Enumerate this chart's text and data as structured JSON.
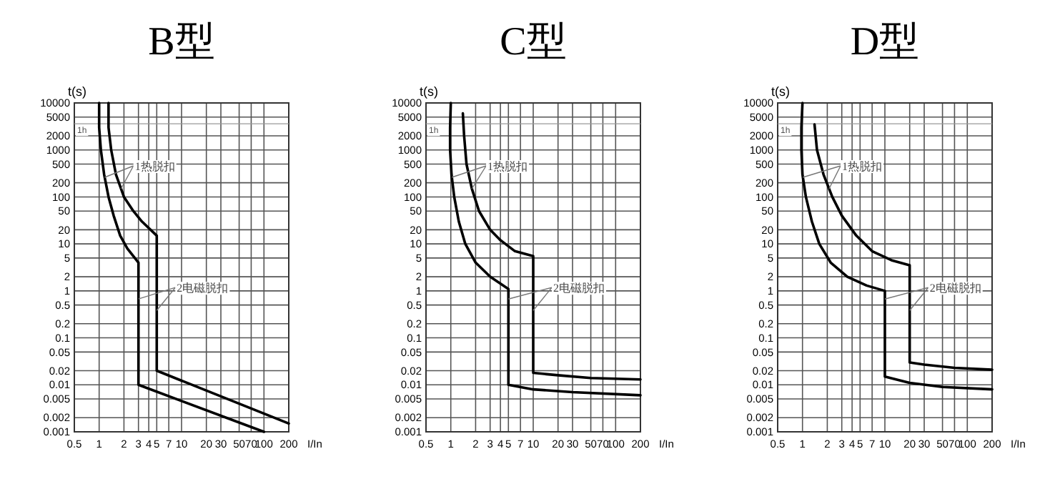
{
  "chart_data": [
    {
      "type": "line",
      "title": "B型",
      "xlabel": "I/In",
      "ylabel": "t(s)",
      "log": "xy",
      "grid": true,
      "xlim": [
        0.5,
        200
      ],
      "xticks": [
        0.5,
        1,
        2,
        3,
        4,
        5,
        7,
        10,
        20,
        30,
        50,
        70,
        100,
        200
      ],
      "ylim": [
        0.001,
        10000
      ],
      "yticks": [
        0.001,
        0.002,
        0.005,
        0.01,
        0.02,
        0.05,
        0.1,
        0.2,
        0.5,
        1,
        2,
        5,
        10,
        20,
        50,
        100,
        200,
        500,
        1000,
        2000,
        5000,
        10000
      ],
      "series": [
        {
          "color": "#000000",
          "x": [
            1,
            1,
            1.05,
            1.15,
            1.3,
            1.5,
            1.8,
            2.2,
            3,
            3,
            100
          ],
          "values": [
            10000,
            3000,
            1000,
            300,
            100,
            40,
            15,
            8,
            4,
            0.01,
            0.001
          ]
        },
        {
          "color": "#000000",
          "x": [
            1.3,
            1.3,
            1.4,
            1.6,
            2,
            2.6,
            3.3,
            5,
            5,
            200
          ],
          "values": [
            10000,
            3000,
            1000,
            300,
            100,
            50,
            30,
            15,
            0.02,
            0.0015
          ]
        }
      ],
      "annotations": [
        "1热脱扣",
        "2电磁脱扣"
      ],
      "ref_lines": [
        {
          "axis": "y",
          "value": 3600,
          "label": "1h"
        }
      ]
    },
    {
      "type": "line",
      "title": "C型",
      "xlabel": "I/In",
      "ylabel": "t(s)",
      "log": "xy",
      "grid": true,
      "xlim": [
        0.5,
        200
      ],
      "xticks": [
        0.5,
        1,
        2,
        3,
        4,
        5,
        7,
        10,
        20,
        30,
        50,
        70,
        100,
        200
      ],
      "ylim": [
        0.001,
        10000
      ],
      "yticks": [
        0.001,
        0.002,
        0.005,
        0.01,
        0.02,
        0.05,
        0.1,
        0.2,
        0.5,
        1,
        2,
        5,
        10,
        20,
        50,
        100,
        200,
        500,
        1000,
        2000,
        5000,
        10000
      ],
      "series": [
        {
          "color": "#000000",
          "x": [
            1,
            0.98,
            0.98,
            1.02,
            1.1,
            1.25,
            1.5,
            2,
            3,
            5,
            5,
            10,
            30,
            200
          ],
          "values": [
            10000,
            3000,
            1000,
            300,
            100,
            30,
            10,
            4,
            2,
            1.1,
            0.01,
            0.008,
            0.007,
            0.006
          ]
        },
        {
          "color": "#000000",
          "x": [
            1.4,
            1.45,
            1.55,
            1.8,
            2.2,
            3,
            4,
            6,
            10,
            10,
            20,
            50,
            200
          ],
          "values": [
            6000,
            2000,
            500,
            150,
            50,
            20,
            12,
            7,
            5.5,
            0.018,
            0.016,
            0.014,
            0.013
          ]
        }
      ],
      "annotations": [
        "1热脱扣",
        "2电磁脱扣"
      ],
      "ref_lines": [
        {
          "axis": "y",
          "value": 3600,
          "label": "1h"
        }
      ]
    },
    {
      "type": "line",
      "title": "D型",
      "xlabel": "I/In",
      "ylabel": "t(s)",
      "log": "xy",
      "grid": true,
      "xlim": [
        0.5,
        200
      ],
      "xticks": [
        0.5,
        1,
        2,
        3,
        4,
        5,
        7,
        10,
        20,
        30,
        50,
        70,
        100,
        200
      ],
      "ylim": [
        0.001,
        10000
      ],
      "yticks": [
        0.001,
        0.002,
        0.005,
        0.01,
        0.02,
        0.05,
        0.1,
        0.2,
        0.5,
        1,
        2,
        5,
        10,
        20,
        50,
        100,
        200,
        500,
        1000,
        2000,
        5000,
        10000
      ],
      "series": [
        {
          "color": "#000000",
          "x": [
            1,
            0.97,
            0.97,
            1,
            1.1,
            1.3,
            1.6,
            2.2,
            3.5,
            6,
            10,
            10,
            20,
            50,
            200
          ],
          "values": [
            10000,
            3000,
            1000,
            300,
            100,
            30,
            10,
            4,
            2,
            1.3,
            1,
            0.015,
            0.011,
            0.009,
            0.008
          ]
        },
        {
          "color": "#000000",
          "x": [
            1.4,
            1.5,
            1.8,
            2.3,
            3,
            4.5,
            7,
            12,
            20,
            20,
            30,
            70,
            200
          ],
          "values": [
            3500,
            1000,
            300,
            100,
            40,
            15,
            7,
            4.5,
            3.5,
            0.03,
            0.027,
            0.023,
            0.021
          ]
        }
      ],
      "annotations": [
        "1热脱扣",
        "2电磁脱扣"
      ],
      "ref_lines": [
        {
          "axis": "y",
          "value": 3600,
          "label": "1h"
        }
      ]
    }
  ]
}
